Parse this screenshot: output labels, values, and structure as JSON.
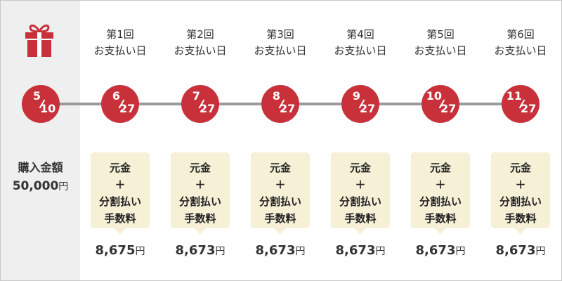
{
  "purchase": {
    "date_month": "5",
    "date_day": "10",
    "label": "購入金額",
    "amount": "50,000",
    "unit": "円"
  },
  "fee_box": {
    "line1": "元金",
    "line2": "＋",
    "line3": "分割払い",
    "line4": "手数料"
  },
  "payments": [
    {
      "header_num": "第1回",
      "header_label": "お支払い日",
      "month": "6",
      "day": "27",
      "amount": "8,675",
      "unit": "円"
    },
    {
      "header_num": "第2回",
      "header_label": "お支払い日",
      "month": "7",
      "day": "27",
      "amount": "8,673",
      "unit": "円"
    },
    {
      "header_num": "第3回",
      "header_label": "お支払い日",
      "month": "8",
      "day": "27",
      "amount": "8,673",
      "unit": "円"
    },
    {
      "header_num": "第4回",
      "header_label": "お支払い日",
      "month": "9",
      "day": "27",
      "amount": "8,673",
      "unit": "円"
    },
    {
      "header_num": "第5回",
      "header_label": "お支払い日",
      "month": "10",
      "day": "27",
      "amount": "8,673",
      "unit": "円"
    },
    {
      "header_num": "第6回",
      "header_label": "お支払い日",
      "month": "11",
      "day": "27",
      "amount": "8,673",
      "unit": "円"
    }
  ],
  "colors": {
    "accent_red": "#c8313a",
    "fee_box_bg": "#f6f0d6",
    "timeline": "#9a9a9a",
    "left_panel": "#efefef"
  },
  "icons": {
    "gift": "gift-icon"
  }
}
